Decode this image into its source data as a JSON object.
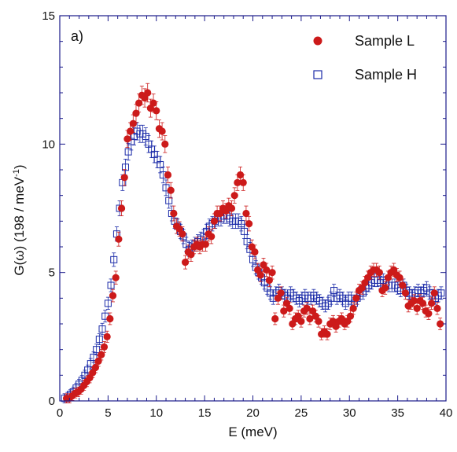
{
  "chart_data": {
    "type": "scatter",
    "panel_label": "a)",
    "xlabel": "E (meV)",
    "ylabel_main": "G(ω) (198 / meV",
    "ylabel_sup": "-1",
    "ylabel_close": ")",
    "xlim": [
      0,
      40
    ],
    "ylim": [
      0,
      15
    ],
    "xticks": [
      0,
      5,
      10,
      15,
      20,
      25,
      30,
      35,
      40
    ],
    "yticks": [
      0,
      5,
      10,
      15
    ],
    "grid": false,
    "legend_position": "top-right",
    "series": [
      {
        "name": "Sample L",
        "marker": "filled-circle",
        "color": "#cc1a1a",
        "x": [
          0.7,
          1.0,
          1.3,
          1.6,
          1.9,
          2.2,
          2.5,
          2.8,
          3.1,
          3.4,
          3.7,
          4.0,
          4.3,
          4.6,
          4.9,
          5.2,
          5.5,
          5.8,
          6.1,
          6.4,
          6.7,
          7.0,
          7.3,
          7.6,
          7.9,
          8.2,
          8.5,
          8.8,
          9.1,
          9.4,
          9.7,
          10.0,
          10.3,
          10.6,
          10.9,
          11.2,
          11.5,
          11.8,
          12.1,
          12.4,
          12.7,
          13.0,
          13.3,
          13.6,
          13.9,
          14.2,
          14.5,
          14.8,
          15.1,
          15.4,
          15.7,
          16.0,
          16.3,
          16.6,
          16.9,
          17.2,
          17.5,
          17.8,
          18.1,
          18.4,
          18.7,
          19.0,
          19.3,
          19.6,
          19.9,
          20.2,
          20.5,
          20.8,
          21.1,
          21.4,
          21.7,
          22.0,
          22.3,
          22.6,
          22.9,
          23.2,
          23.5,
          23.8,
          24.1,
          24.4,
          24.7,
          25.0,
          25.3,
          25.6,
          25.9,
          26.2,
          26.5,
          26.8,
          27.1,
          27.4,
          27.7,
          28.0,
          28.3,
          28.6,
          28.9,
          29.2,
          29.5,
          29.8,
          30.1,
          30.4,
          30.7,
          31.0,
          31.3,
          31.6,
          31.9,
          32.2,
          32.5,
          32.8,
          33.1,
          33.4,
          33.7,
          34.0,
          34.3,
          34.6,
          34.9,
          35.2,
          35.5,
          35.8,
          36.1,
          36.4,
          36.7,
          37.0,
          37.3,
          37.6,
          37.9,
          38.2,
          38.5,
          38.8,
          39.1,
          39.4
        ],
        "y": [
          0.1,
          0.1,
          0.2,
          0.3,
          0.35,
          0.45,
          0.6,
          0.75,
          0.9,
          1.1,
          1.3,
          1.55,
          1.8,
          2.1,
          2.5,
          3.2,
          4.1,
          4.8,
          6.3,
          7.5,
          8.7,
          10.2,
          10.5,
          10.8,
          11.2,
          11.6,
          11.9,
          11.8,
          12.0,
          11.4,
          11.6,
          11.3,
          10.6,
          10.5,
          10.0,
          8.8,
          8.2,
          7.3,
          6.8,
          6.7,
          6.5,
          5.4,
          5.8,
          5.7,
          6.0,
          6.1,
          6.0,
          6.1,
          6.1,
          6.5,
          6.4,
          7.0,
          7.3,
          7.3,
          7.5,
          7.4,
          7.6,
          7.5,
          8.0,
          8.5,
          8.8,
          8.5,
          7.3,
          6.9,
          6.0,
          5.8,
          5.1,
          4.9,
          5.3,
          5.1,
          4.7,
          5.0,
          3.2,
          4.0,
          4.2,
          3.5,
          3.8,
          3.6,
          3.0,
          3.2,
          3.3,
          3.1,
          3.5,
          3.6,
          3.2,
          3.5,
          3.3,
          3.1,
          2.6,
          2.7,
          2.6,
          3.0,
          3.1,
          2.9,
          3.1,
          3.2,
          3.0,
          3.1,
          3.3,
          3.6,
          4.0,
          4.3,
          4.4,
          4.6,
          4.8,
          5.0,
          5.1,
          5.1,
          5.0,
          4.3,
          4.4,
          4.8,
          5.0,
          5.1,
          4.9,
          4.8,
          4.5,
          4.2,
          3.7,
          3.8,
          3.9,
          3.6,
          3.9,
          3.8,
          3.5,
          3.4,
          3.8,
          4.2,
          3.6,
          3.0
        ]
      },
      {
        "name": "Sample H",
        "marker": "open-square",
        "color": "#1a2aa8",
        "x": [
          0.5,
          0.8,
          1.1,
          1.4,
          1.7,
          2.0,
          2.3,
          2.6,
          2.9,
          3.2,
          3.5,
          3.8,
          4.1,
          4.4,
          4.7,
          5.0,
          5.3,
          5.6,
          5.9,
          6.2,
          6.5,
          6.8,
          7.1,
          7.4,
          7.7,
          8.0,
          8.3,
          8.6,
          8.9,
          9.2,
          9.5,
          9.8,
          10.1,
          10.4,
          10.7,
          11.0,
          11.3,
          11.6,
          11.9,
          12.2,
          12.5,
          12.8,
          13.1,
          13.4,
          13.7,
          14.0,
          14.3,
          14.6,
          14.9,
          15.2,
          15.5,
          15.8,
          16.1,
          16.4,
          16.7,
          17.0,
          17.3,
          17.6,
          17.9,
          18.2,
          18.5,
          18.8,
          19.1,
          19.4,
          19.7,
          20.0,
          20.3,
          20.6,
          20.9,
          21.2,
          21.5,
          21.8,
          22.1,
          22.4,
          22.7,
          23.0,
          23.3,
          23.6,
          23.9,
          24.2,
          24.5,
          24.8,
          25.1,
          25.4,
          25.7,
          26.0,
          26.3,
          26.6,
          26.9,
          27.2,
          27.5,
          27.8,
          28.1,
          28.4,
          28.7,
          29.0,
          29.3,
          29.6,
          29.9,
          30.2,
          30.5,
          30.8,
          31.1,
          31.4,
          31.7,
          32.0,
          32.3,
          32.6,
          32.9,
          33.2,
          33.5,
          33.8,
          34.1,
          34.4,
          34.7,
          35.0,
          35.3,
          35.6,
          35.9,
          36.2,
          36.5,
          36.8,
          37.1,
          37.4,
          37.7,
          38.0,
          38.3,
          38.6,
          38.9,
          39.2,
          39.5
        ],
        "y": [
          0.1,
          0.15,
          0.25,
          0.35,
          0.5,
          0.65,
          0.8,
          1.0,
          1.2,
          1.45,
          1.7,
          2.0,
          2.4,
          2.8,
          3.3,
          3.8,
          4.5,
          5.5,
          6.5,
          7.5,
          8.5,
          9.1,
          9.7,
          10.1,
          10.3,
          10.5,
          10.4,
          10.4,
          10.3,
          10.0,
          9.8,
          9.6,
          9.4,
          9.2,
          8.8,
          8.3,
          7.8,
          7.3,
          7.0,
          6.8,
          6.6,
          6.4,
          6.1,
          5.9,
          6.0,
          6.1,
          6.2,
          6.3,
          6.4,
          6.6,
          6.8,
          6.9,
          7.0,
          7.1,
          7.1,
          7.2,
          7.2,
          7.1,
          7.0,
          7.0,
          7.0,
          6.9,
          6.6,
          6.2,
          5.9,
          5.5,
          5.2,
          5.0,
          4.8,
          4.6,
          4.4,
          4.2,
          4.0,
          4.2,
          4.3,
          4.2,
          4.1,
          4.0,
          4.2,
          4.1,
          4.0,
          3.9,
          4.0,
          4.1,
          4.0,
          4.0,
          4.1,
          4.0,
          3.9,
          3.8,
          3.7,
          3.8,
          4.0,
          4.3,
          4.0,
          4.1,
          4.0,
          3.8,
          4.0,
          4.0,
          3.8,
          4.0,
          4.2,
          4.2,
          4.4,
          4.5,
          4.6,
          4.7,
          4.7,
          4.6,
          4.7,
          4.6,
          4.5,
          4.5,
          4.5,
          4.4,
          4.3,
          4.5,
          4.3,
          4.2,
          4.1,
          4.2,
          4.3,
          4.2,
          4.3,
          4.4,
          4.2,
          4.1,
          4.0,
          4.1,
          4.2
        ]
      }
    ]
  }
}
